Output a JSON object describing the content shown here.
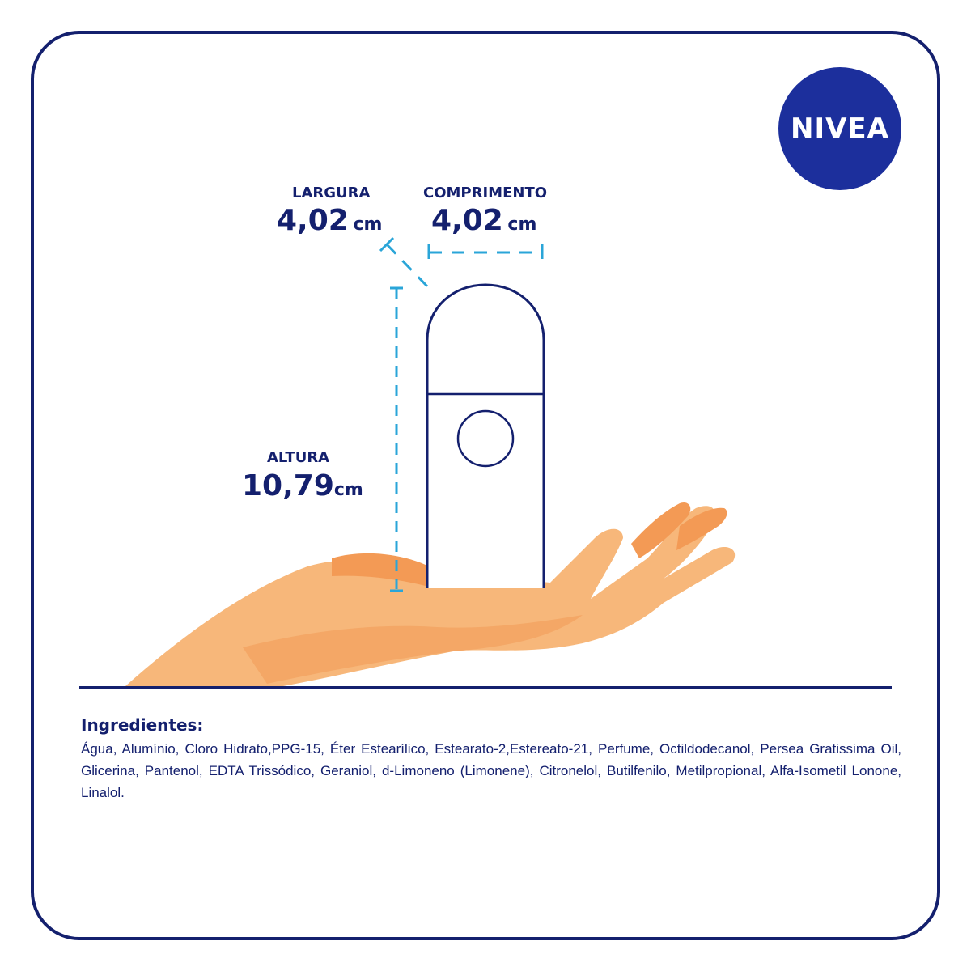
{
  "brand": {
    "logo_text": "NIVEA",
    "colors": {
      "navy": "#14206e",
      "logo_blue": "#1c2f9c",
      "dimension_line": "#2aa5d8",
      "skin": "#f7b77a",
      "skin_shadow": "#f39a55"
    }
  },
  "dimensions": {
    "width": {
      "label": "LARGURA",
      "value": "4,02",
      "unit": "cm"
    },
    "length": {
      "label": "COMPRIMENTO",
      "value": "4,02",
      "unit": "cm"
    },
    "height": {
      "label": "ALTURA",
      "value": "10,79",
      "unit": "cm"
    }
  },
  "ingredients": {
    "title": "Ingredientes:",
    "text": "Água, Alumínio, Cloro Hidrato,PPG-15, Éter Estearílico, Estearato-2,Estereato-21, Perfume, Octildodecanol, Persea Gratissima Oil, Glicerina, Pantenol, EDTA Trissódico, Geraniol, d-Limoneno (Limonene), Citronelol, Butilfenilo, Metilpropional, Alfa-Isometil Lonone, Linalol."
  }
}
